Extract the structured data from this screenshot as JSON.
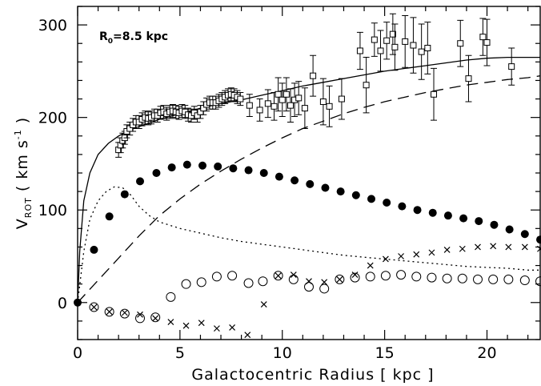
{
  "chart_data": {
    "type": "scatter",
    "title": "",
    "xlabel": "Galactocentric Radius [ kpc ]",
    "ylabel": {
      "main": "V",
      "sub": "ROT",
      "rest": " ( km s",
      "sup": "-1",
      "end": " )"
    },
    "annotation": {
      "main": "R",
      "sub": "0",
      "rest": "=8.5 kpc"
    },
    "xlim": [
      0,
      22.6
    ],
    "ylim": [
      -40,
      320
    ],
    "xticks": [
      0,
      5,
      10,
      15,
      20
    ],
    "yticks": [
      0,
      100,
      200,
      300
    ],
    "xtick_labels": [
      "0",
      "5",
      "10",
      "15",
      "20"
    ],
    "ytick_labels": [
      "0",
      "100",
      "200",
      "300"
    ],
    "series": [
      {
        "style": "solid-line",
        "x": [
          0,
          0.1,
          0.3,
          0.6,
          1,
          1.5,
          2,
          2.5,
          3,
          4,
          5,
          6,
          7,
          8,
          9,
          10,
          11,
          12,
          13,
          14,
          15,
          16,
          17,
          18,
          19,
          20,
          21,
          22,
          22.6
        ],
        "y": [
          0,
          55,
          110,
          140,
          160,
          172,
          180,
          186,
          190,
          198,
          204,
          210,
          215,
          219,
          224,
          229,
          234,
          238,
          242,
          246,
          250,
          253,
          256,
          259,
          262,
          264,
          265,
          265,
          265
        ]
      },
      {
        "style": "dashed-line",
        "x": [
          0,
          0.5,
          1,
          1.5,
          2,
          3,
          4,
          5,
          6,
          7,
          8,
          9,
          10,
          11,
          12,
          13,
          14,
          15,
          16,
          17,
          18,
          19,
          20,
          21,
          22,
          22.6
        ],
        "y": [
          0,
          12,
          24,
          36,
          48,
          72,
          94,
          112,
          128,
          142,
          155,
          167,
          178,
          188,
          196,
          204,
          211,
          217,
          222,
          227,
          231,
          235,
          238,
          241,
          243,
          245
        ]
      },
      {
        "style": "dotted-line",
        "x": [
          0,
          0.3,
          0.6,
          1,
          1.4,
          1.8,
          2.2,
          2.6,
          3,
          3.5,
          4,
          5,
          6,
          7,
          8,
          9,
          10,
          11,
          12,
          13,
          14,
          15,
          16,
          17,
          18,
          19,
          20,
          21,
          22,
          22.6
        ],
        "y": [
          0,
          55,
          90,
          110,
          120,
          125,
          124,
          116,
          104,
          94,
          87,
          80,
          75,
          70,
          66,
          63,
          60,
          57,
          54,
          51,
          49,
          47,
          45,
          43,
          41,
          39,
          38,
          37,
          35,
          35
        ]
      },
      {
        "style": "filled-circle",
        "x": [
          0,
          0.8,
          1.55,
          2.3,
          3.05,
          3.85,
          4.6,
          5.35,
          6.1,
          6.85,
          7.6,
          8.35,
          9.1,
          9.85,
          10.6,
          11.35,
          12.1,
          12.85,
          13.6,
          14.35,
          15.1,
          15.85,
          16.6,
          17.35,
          18.1,
          18.85,
          19.6,
          20.35,
          21.1,
          21.85,
          22.6
        ],
        "y": [
          0,
          57,
          93,
          117,
          131,
          140,
          146,
          149,
          148,
          147,
          145,
          143,
          140,
          136,
          132,
          128,
          124,
          120,
          116,
          112,
          108,
          104,
          100,
          97,
          94,
          91,
          88,
          84,
          79,
          74,
          68
        ]
      },
      {
        "style": "open-circle",
        "x": [
          0.8,
          1.55,
          2.3,
          3.05,
          3.8,
          4.55,
          5.3,
          6.05,
          6.8,
          7.55,
          8.35,
          9.05,
          9.8,
          10.55,
          11.3,
          12.05,
          12.8,
          13.55,
          14.3,
          15.05,
          15.8,
          16.55,
          17.3,
          18.05,
          18.8,
          19.55,
          20.3,
          21.05,
          21.85,
          22.6
        ],
        "y": [
          -5,
          -10,
          -12,
          -17,
          -16,
          6,
          20,
          22,
          28,
          29,
          21,
          23,
          29,
          25,
          17,
          15,
          25,
          27,
          28,
          29,
          30,
          28,
          27,
          26,
          26,
          25,
          25,
          25,
          24,
          23
        ]
      },
      {
        "style": "cross",
        "x": [
          0.8,
          1.55,
          2.3,
          3.05,
          3.8,
          4.55,
          5.3,
          6.05,
          6.8,
          7.55,
          8.3,
          9.1,
          9.8,
          10.55,
          11.3,
          12.05,
          12.8,
          13.55,
          14.3,
          15.05,
          15.8,
          16.55,
          17.3,
          18.05,
          18.8,
          19.55,
          20.3,
          21.05,
          21.85,
          22.6
        ],
        "y": [
          -5,
          -10,
          -11,
          -13,
          -17,
          -21,
          -25,
          -22,
          -28,
          -27,
          -35,
          -2,
          29,
          30,
          23,
          22,
          25,
          30,
          40,
          47,
          50,
          52,
          54,
          57,
          58,
          60,
          61,
          60,
          60,
          58
        ]
      },
      {
        "style": "open-square-errorbar",
        "x": [
          2,
          2.1,
          2.2,
          2.3,
          2.4,
          2.55,
          2.7,
          2.85,
          3,
          3.15,
          3.3,
          3.45,
          3.6,
          3.75,
          3.9,
          4.05,
          4.2,
          4.35,
          4.5,
          4.65,
          4.8,
          4.95,
          5.1,
          5.25,
          5.4,
          5.55,
          5.7,
          5.85,
          6,
          6.15,
          6.3,
          6.45,
          6.6,
          6.75,
          6.9,
          7.05,
          7.2,
          7.35,
          7.5,
          7.65,
          7.8,
          7.95,
          8.4,
          8.9,
          9.3,
          9.6,
          9.8,
          10,
          10.2,
          10.4,
          10.6,
          10.8,
          11.1,
          11.5,
          12,
          12.3,
          12.9,
          13.8,
          14.1,
          14.5,
          14.8,
          15.1,
          15.4,
          15.5,
          16,
          16.4,
          16.8,
          17.1,
          17.4,
          18.7,
          19.1,
          19.8,
          20,
          21.2
        ],
        "y": [
          165,
          170,
          175,
          178,
          185,
          188,
          192,
          195,
          195,
          198,
          200,
          199,
          200,
          202,
          202,
          205,
          206,
          204,
          206,
          207,
          206,
          205,
          207,
          206,
          203,
          202,
          205,
          202,
          206,
          210,
          214,
          216,
          216,
          216,
          218,
          220,
          222,
          224,
          225,
          224,
          222,
          220,
          213,
          208,
          215,
          212,
          225,
          219,
          225,
          213,
          219,
          221,
          210,
          245,
          217,
          212,
          220,
          272,
          235,
          284,
          272,
          283,
          290,
          276,
          282,
          278,
          271,
          275,
          225,
          280,
          242,
          287,
          281,
          255
        ],
        "err": [
          8,
          8,
          8,
          7,
          7,
          7,
          7,
          7,
          7,
          7,
          7,
          7,
          7,
          7,
          7,
          7,
          7,
          7,
          7,
          7,
          7,
          7,
          7,
          7,
          7,
          7,
          7,
          7,
          7,
          7,
          7,
          7,
          7,
          7,
          7,
          7,
          7,
          7,
          7,
          7,
          7,
          7,
          12,
          12,
          15,
          15,
          18,
          18,
          18,
          18,
          18,
          18,
          22,
          22,
          25,
          22,
          22,
          20,
          30,
          18,
          22,
          20,
          22,
          25,
          28,
          30,
          30,
          28,
          28,
          25,
          25,
          20,
          25,
          20
        ]
      }
    ],
    "grid": false,
    "legend": "none"
  }
}
